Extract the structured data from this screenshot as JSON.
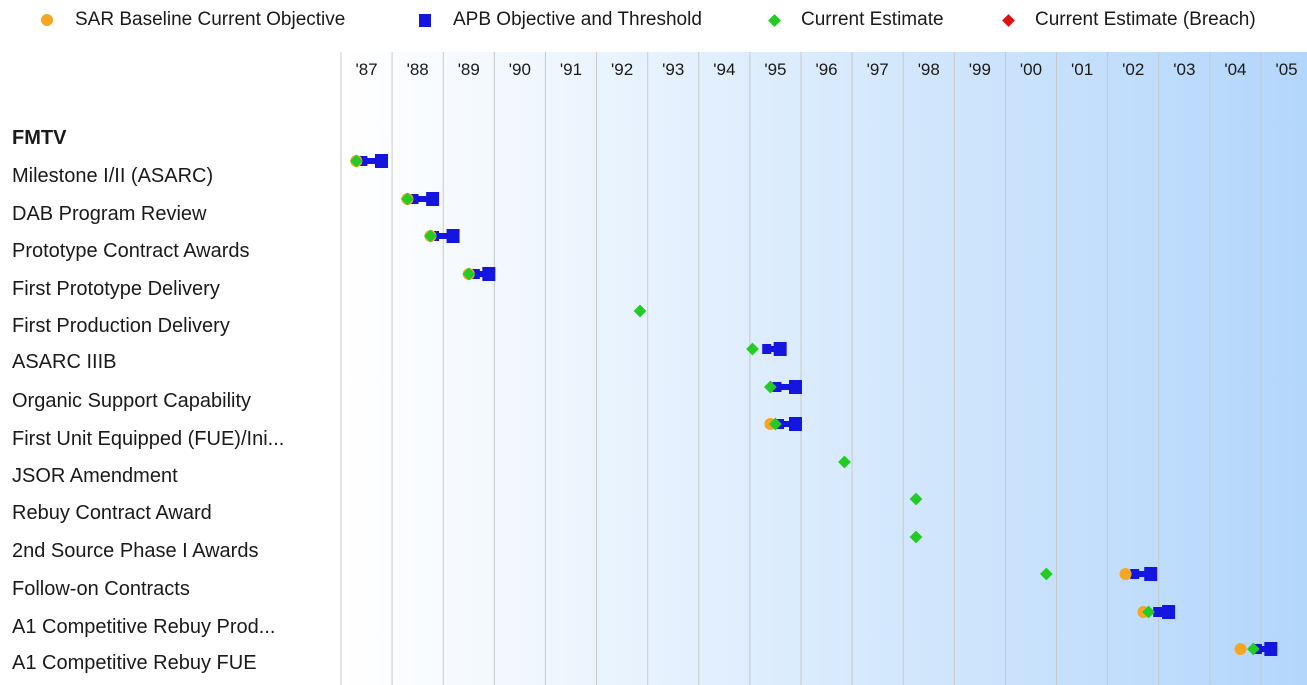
{
  "legend": {
    "items": [
      {
        "label": "SAR Baseline Current Objective",
        "shape": "circle",
        "color": "#f5a623"
      },
      {
        "label": "APB Objective and Threshold",
        "shape": "square",
        "color": "#1515e0"
      },
      {
        "label": "Current Estimate",
        "shape": "diamond",
        "color": "#22cc22"
      },
      {
        "label": "Current Estimate (Breach)",
        "shape": "diamond",
        "color": "#dd1111"
      }
    ]
  },
  "rows": {
    "header": "FMTV",
    "labels": [
      "Milestone I/II (ASARC)",
      "DAB Program Review",
      "Prototype Contract Awards",
      "First Prototype Delivery",
      "First Production Delivery",
      "ASARC IIIB",
      "Organic Support Capability",
      "First Unit Equipped (FUE)/Ini...",
      "JSOR Amendment",
      "Rebuy Contract Award",
      "2nd Source Phase I Awards",
      "Follow-on Contracts",
      "A1 Competitive Rebuy Prod...",
      "A1 Competitive Rebuy FUE"
    ]
  },
  "chart_data": {
    "type": "scatter",
    "x_axis": {
      "ticks": [
        "'87",
        "'88",
        "'89",
        "'90",
        "'91",
        "'92",
        "'93",
        "'94",
        "'95",
        "'96",
        "'97",
        "'98",
        "'99",
        "'00",
        "'01",
        "'02",
        "'03",
        "'04",
        "'05"
      ],
      "range": [
        1987.0,
        2005.9
      ],
      "gridlines": true
    },
    "legend_position": "top",
    "colors": {
      "sar": "#f5a623",
      "apb_bar": "#1515e0",
      "estimate": "#22cc22",
      "breach": "#dd1111",
      "gridline": "#c9c9c9",
      "bg_left": "#ffffff",
      "bg_right": "#b3d6fb"
    },
    "milestones": [
      {
        "name": "Milestone I/II (ASARC)",
        "sar": 1987.3,
        "apb": [
          1987.4,
          1987.9
        ],
        "estimate": 1987.3
      },
      {
        "name": "DAB Program Review",
        "sar": 1988.3,
        "apb": [
          1988.4,
          1988.9
        ],
        "estimate": 1988.3
      },
      {
        "name": "Prototype Contract Awards",
        "sar": 1988.75,
        "apb": [
          1988.8,
          1989.3
        ],
        "estimate": 1988.75
      },
      {
        "name": "First Prototype Delivery",
        "sar": 1989.5,
        "apb": [
          1989.6,
          1990.0
        ],
        "estimate": 1989.5
      },
      {
        "name": "First Production Delivery",
        "sar": null,
        "apb": null,
        "estimate": 1992.85
      },
      {
        "name": "ASARC IIIB",
        "sar": null,
        "apb": [
          1995.3,
          1995.7
        ],
        "estimate": 1995.05
      },
      {
        "name": "Organic Support Capability",
        "sar": null,
        "apb": [
          1995.5,
          1996.0
        ],
        "estimate": 1995.4
      },
      {
        "name": "First Unit Equipped (FUE)/Ini...",
        "sar": 1995.4,
        "apb": [
          1995.55,
          1996.0
        ],
        "estimate": 1995.5
      },
      {
        "name": "JSOR Amendment",
        "sar": null,
        "apb": null,
        "estimate": 1996.85
      },
      {
        "name": "Rebuy Contract Award",
        "sar": null,
        "apb": null,
        "estimate": 1998.25
      },
      {
        "name": "2nd Source Phase I Awards",
        "sar": null,
        "apb": null,
        "estimate": 1998.25
      },
      {
        "name": "Follow-on Contracts",
        "sar": 2002.35,
        "apb": [
          2002.5,
          2002.95
        ],
        "estimate": 2000.8
      },
      {
        "name": "A1 Competitive Rebuy Prod...",
        "sar": 2002.7,
        "apb": [
          2002.95,
          2003.3
        ],
        "estimate": 2002.8
      },
      {
        "name": "A1 Competitive Rebuy FUE",
        "sar": 2004.6,
        "apb": [
          2004.9,
          2005.3
        ],
        "estimate": 2004.85
      }
    ]
  }
}
